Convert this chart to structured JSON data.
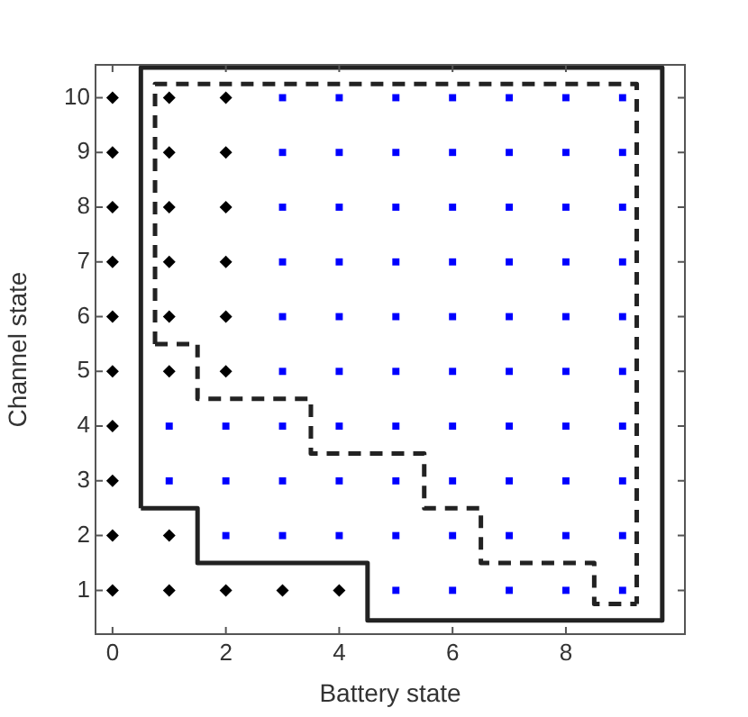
{
  "chart_data": {
    "type": "scatter",
    "xlabel": "Battery state",
    "ylabel": "Channel state",
    "xlim": [
      -0.3,
      10.1
    ],
    "ylim": [
      0.2,
      10.6
    ],
    "xticks": [
      0,
      2,
      4,
      6,
      8
    ],
    "yticks": [
      1,
      2,
      3,
      4,
      5,
      6,
      7,
      8,
      9,
      10
    ],
    "grid": false,
    "legend": false,
    "series": [
      {
        "type": "scatter",
        "marker": "diamond",
        "color": "#000000",
        "x": [
          0,
          1,
          2,
          0,
          1,
          2,
          0,
          1,
          2,
          0,
          1,
          2,
          0,
          1,
          2,
          0,
          1,
          2,
          0,
          0,
          0,
          1,
          0,
          1,
          2,
          3,
          4
        ],
        "values": [
          10,
          10,
          10,
          9,
          9,
          9,
          8,
          8,
          8,
          7,
          7,
          7,
          6,
          6,
          6,
          5,
          5,
          5,
          4,
          3,
          2,
          2,
          1,
          1,
          1,
          1,
          1
        ]
      },
      {
        "type": "scatter",
        "marker": "square",
        "color": "#0000ff",
        "x": [
          3,
          4,
          5,
          6,
          7,
          8,
          9,
          3,
          4,
          5,
          6,
          7,
          8,
          9,
          3,
          4,
          5,
          6,
          7,
          8,
          9,
          3,
          4,
          5,
          6,
          7,
          8,
          9,
          3,
          4,
          5,
          6,
          7,
          8,
          9,
          3,
          4,
          5,
          6,
          7,
          8,
          9,
          1,
          2,
          3,
          4,
          5,
          6,
          7,
          8,
          9,
          1,
          2,
          3,
          4,
          5,
          6,
          7,
          8,
          9,
          2,
          3,
          4,
          5,
          6,
          7,
          8,
          9,
          5,
          6,
          7,
          8,
          9
        ],
        "values": [
          10,
          10,
          10,
          10,
          10,
          10,
          10,
          9,
          9,
          9,
          9,
          9,
          9,
          9,
          8,
          8,
          8,
          8,
          8,
          8,
          8,
          7,
          7,
          7,
          7,
          7,
          7,
          7,
          6,
          6,
          6,
          6,
          6,
          6,
          6,
          5,
          5,
          5,
          5,
          5,
          5,
          5,
          4,
          4,
          4,
          4,
          4,
          4,
          4,
          4,
          4,
          3,
          3,
          3,
          3,
          3,
          3,
          3,
          3,
          3,
          2,
          2,
          2,
          2,
          2,
          2,
          2,
          2,
          1,
          1,
          1,
          1,
          1
        ]
      },
      {
        "type": "line",
        "marker": "none",
        "line_style": "solid",
        "color": "#222222",
        "x": [
          0.5,
          0.5,
          9.7,
          9.7
        ],
        "values": [
          2.5,
          10.55,
          10.55,
          0.45
        ]
      },
      {
        "type": "line",
        "marker": "none",
        "line_style": "solid",
        "color": "#222222",
        "x": [
          0.5,
          1.5,
          1.5,
          4.5,
          4.5,
          9.7
        ],
        "values": [
          2.5,
          2.5,
          1.5,
          1.5,
          0.45,
          0.45
        ]
      },
      {
        "type": "line",
        "marker": "none",
        "line_style": "dashed",
        "color": "#222222",
        "x": [
          0.75,
          0.75,
          9.25,
          9.25
        ],
        "values": [
          5.5,
          10.25,
          10.25,
          0.75
        ]
      },
      {
        "type": "line",
        "marker": "none",
        "line_style": "dashed",
        "color": "#222222",
        "x": [
          0.75,
          1.5,
          1.5,
          3.5,
          3.5,
          5.5,
          5.5,
          6.5,
          6.5,
          8.5,
          8.5,
          9.25
        ],
        "values": [
          5.5,
          5.5,
          4.5,
          4.5,
          3.5,
          3.5,
          2.5,
          2.5,
          1.5,
          1.5,
          0.75,
          0.75
        ]
      }
    ]
  }
}
